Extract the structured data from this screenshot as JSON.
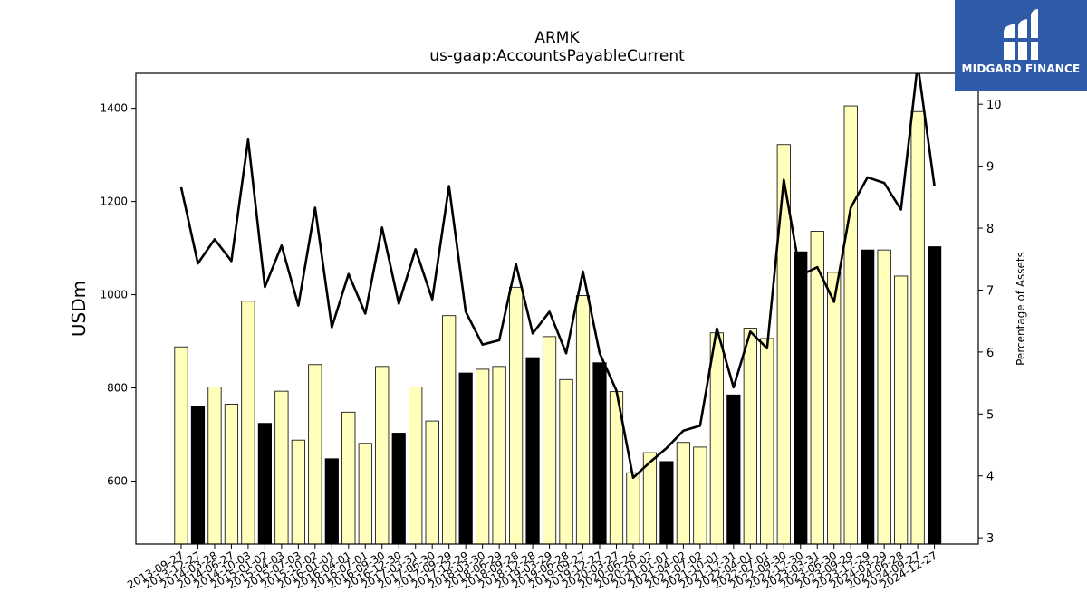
{
  "title": "ARMK",
  "subtitle": "us-gaap:AccountsPayableCurrent",
  "logo": {
    "text": "MIDGARD FINANCE",
    "color": "#2f5aa8"
  },
  "chart_data": {
    "type": "bar",
    "ylabel": "USDm",
    "y2label": "Percentage of Assets",
    "ylim": [
      465,
      1475
    ],
    "y2lim": [
      2.9,
      10.5
    ],
    "yticks": [
      600,
      800,
      1000,
      1200,
      1400
    ],
    "y2ticks": [
      3,
      4,
      5,
      6,
      7,
      8,
      9,
      10
    ],
    "grid": false,
    "bar_colors": {
      "quarter": "#ffffbb",
      "fiscal_year_end": "#000000"
    },
    "line_color": "#000000",
    "categories": [
      "2013-09-27",
      "2013-12-27",
      "2014-03-28",
      "2014-06-27",
      "2014-10-03",
      "2015-01-02",
      "2015-04-03",
      "2015-07-03",
      "2015-10-02",
      "2016-01-01",
      "2016-04-01",
      "2016-07-01",
      "2016-09-30",
      "2016-12-30",
      "2017-03-31",
      "2017-06-30",
      "2017-09-29",
      "2017-12-29",
      "2018-03-30",
      "2018-06-29",
      "2018-09-28",
      "2018-12-28",
      "2019-03-29",
      "2019-06-28",
      "2019-09-27",
      "2019-12-27",
      "2020-03-27",
      "2020-06-26",
      "2020-10-02",
      "2021-01-01",
      "2021-04-02",
      "2021-07-02",
      "2021-10-01",
      "2021-12-31",
      "2022-04-01",
      "2022-07-01",
      "2022-09-30",
      "2022-12-30",
      "2023-03-31",
      "2023-06-30",
      "2023-09-29",
      "2023-12-29",
      "2024-03-29",
      "2024-06-28",
      "2024-09-27",
      "2024-12-27"
    ],
    "series": [
      {
        "type": "bar",
        "values": [
          888,
          760,
          802,
          765,
          986,
          724,
          793,
          688,
          850,
          648,
          748,
          681,
          846,
          703,
          802,
          729,
          955,
          832,
          840,
          846,
          1016,
          865,
          910,
          818,
          998,
          854,
          792,
          618,
          661,
          642,
          683,
          673,
          918,
          785,
          928,
          906,
          1322,
          1092,
          1136,
          1048,
          1405,
          1096,
          1096,
          1040,
          1393,
          1103
        ],
        "fiscal_year_end": [
          false,
          true,
          false,
          false,
          false,
          true,
          false,
          false,
          false,
          true,
          false,
          false,
          false,
          true,
          false,
          false,
          false,
          true,
          false,
          false,
          false,
          true,
          false,
          false,
          false,
          true,
          false,
          false,
          false,
          true,
          false,
          false,
          false,
          true,
          false,
          false,
          false,
          true,
          false,
          false,
          false,
          true,
          false,
          false,
          false,
          true
        ]
      },
      {
        "type": "line",
        "axis": "right",
        "values": [
          8.66,
          7.43,
          7.82,
          7.47,
          9.43,
          7.05,
          7.72,
          6.75,
          8.33,
          6.4,
          7.26,
          6.62,
          8.01,
          6.78,
          7.66,
          6.85,
          8.68,
          6.65,
          6.12,
          6.19,
          7.42,
          6.3,
          6.65,
          5.98,
          7.3,
          5.98,
          5.38,
          3.97,
          4.22,
          4.45,
          4.73,
          4.81,
          6.38,
          5.43,
          6.33,
          6.06,
          8.78,
          7.24,
          7.37,
          6.81,
          8.33,
          8.82,
          8.73,
          8.3,
          10.65,
          8.68
        ]
      }
    ]
  }
}
